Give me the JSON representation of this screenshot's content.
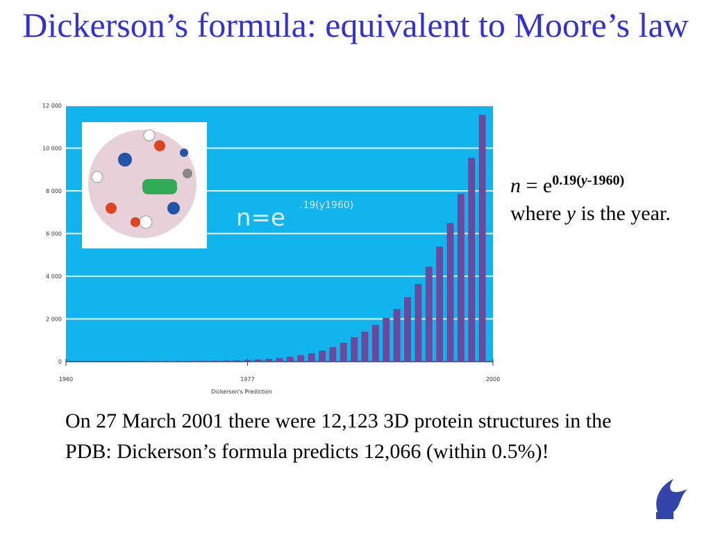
{
  "title": "Dickerson’s formula: equivalent to Moore’s law",
  "formula": {
    "lhs": "n",
    "eq": " = e",
    "exp_a": "0.19(",
    "exp_var": "y",
    "exp_b": "-1960)",
    "where_a": "where ",
    "where_var": "y",
    "where_b": " is the year."
  },
  "note": "On 27 March 2001 there were 12,123 3D protein structures in the PDB: Dickerson’s formula predicts 12,066 (within 0.5%)!",
  "chart_data": {
    "type": "bar",
    "inset_base": "n=e",
    "inset_exponent": ".19(y1960)",
    "x_label": "Dickerson's Prediction",
    "x": [
      1968,
      1969,
      1970,
      1971,
      1972,
      1973,
      1974,
      1975,
      1976,
      1977,
      1978,
      1979,
      1980,
      1981,
      1982,
      1983,
      1984,
      1985,
      1986,
      1987,
      1988,
      1989,
      1990,
      1991,
      1992,
      1993,
      1994,
      1995,
      1996,
      1997,
      1998,
      1999
    ],
    "values": [
      10,
      10,
      15,
      20,
      25,
      30,
      40,
      50,
      60,
      80,
      100,
      130,
      170,
      230,
      300,
      390,
      520,
      680,
      880,
      1140,
      1400,
      1720,
      2050,
      2470,
      3020,
      3640,
      4450,
      5390,
      6490,
      7860,
      9550,
      11560
    ],
    "color": "#6b4a9e",
    "background": "#12b4ee",
    "xlim": [
      1960,
      2000
    ],
    "xticks": [
      1960,
      1977,
      2000
    ],
    "ylim": [
      0,
      12000
    ],
    "yticks": [
      0,
      {
        "value": 2000,
        "label": "2 000"
      },
      {
        "value": 4000,
        "label": "4 000"
      },
      {
        "value": 6000,
        "label": "6 000"
      },
      {
        "value": 8000,
        "label": "8 000"
      },
      {
        "value": 10000,
        "label": "10 000"
      },
      {
        "value": 12000,
        "label": "12 000"
      }
    ],
    "grid": true
  }
}
